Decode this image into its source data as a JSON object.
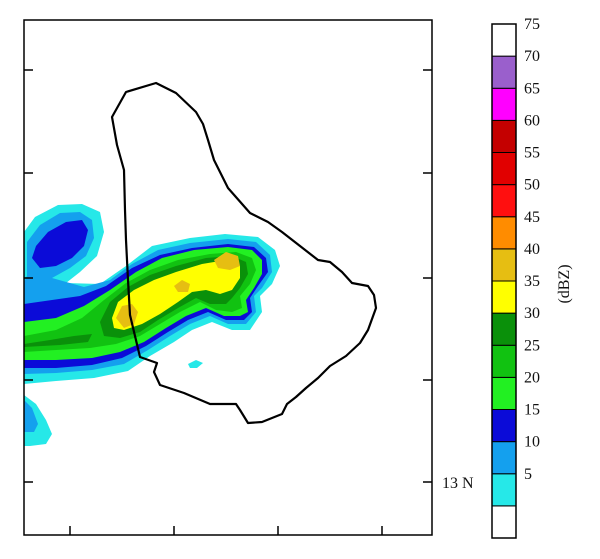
{
  "map": {
    "latitude_label": "13 N"
  },
  "colorbar": {
    "unit_label": "(dBZ)",
    "levels": [
      {
        "value": 0,
        "label": "",
        "color": "#ffffff"
      },
      {
        "value": 5,
        "label": "5",
        "color": "#26e8e8"
      },
      {
        "value": 10,
        "label": "10",
        "color": "#14a0ee"
      },
      {
        "value": 15,
        "label": "15",
        "color": "#0b0bd8"
      },
      {
        "value": 20,
        "label": "20",
        "color": "#22f022"
      },
      {
        "value": 25,
        "label": "25",
        "color": "#11c211"
      },
      {
        "value": 30,
        "label": "30",
        "color": "#0a900a"
      },
      {
        "value": 35,
        "label": "35",
        "color": "#ffff00"
      },
      {
        "value": 40,
        "label": "40",
        "color": "#e6be12"
      },
      {
        "value": 45,
        "label": "45",
        "color": "#ff8c00"
      },
      {
        "value": 50,
        "label": "50",
        "color": "#ff0f0f"
      },
      {
        "value": 55,
        "label": "55",
        "color": "#e10000"
      },
      {
        "value": 60,
        "label": "60",
        "color": "#c40000"
      },
      {
        "value": 65,
        "label": "65",
        "color": "#ff00ff"
      },
      {
        "value": 70,
        "label": "70",
        "color": "#9a5fcc"
      },
      {
        "value": 75,
        "label": "75",
        "color": "#ffffff"
      }
    ]
  }
}
